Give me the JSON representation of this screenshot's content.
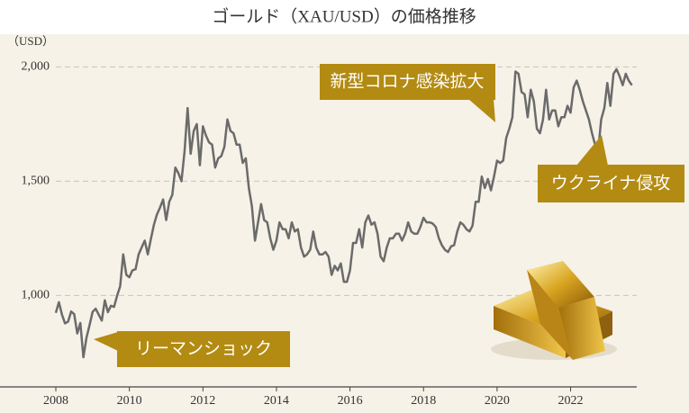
{
  "chart_data": {
    "type": "line",
    "title": "ゴールド（XAU/USD）の価格推移",
    "y_unit": "（USD）",
    "xlim": [
      2008,
      2023.8
    ],
    "xticks": [
      2008,
      2010,
      2012,
      2014,
      2016,
      2018,
      2020,
      2022
    ],
    "ylim": [
      600,
      2100
    ],
    "yticks": [
      {
        "value": 1000,
        "label": "1,000"
      },
      {
        "value": 1500,
        "label": "1,500"
      },
      {
        "value": 2000,
        "label": "2,000"
      }
    ],
    "grid": true,
    "annotations": [
      "新型コロナ感染拡大",
      "ウクライナ侵攻",
      "リーマンショック"
    ],
    "series": [
      {
        "name": "XAU/USD",
        "color": "#6b6b6b",
        "x": [
          2008,
          2008.083,
          2008.167,
          2008.25,
          2008.333,
          2008.417,
          2008.5,
          2008.583,
          2008.667,
          2008.75,
          2008.833,
          2008.917,
          2009,
          2009.083,
          2009.167,
          2009.25,
          2009.333,
          2009.417,
          2009.5,
          2009.583,
          2009.667,
          2009.75,
          2009.833,
          2009.917,
          2010,
          2010.083,
          2010.167,
          2010.25,
          2010.333,
          2010.417,
          2010.5,
          2010.583,
          2010.667,
          2010.75,
          2010.833,
          2010.917,
          2011,
          2011.083,
          2011.167,
          2011.25,
          2011.333,
          2011.417,
          2011.5,
          2011.583,
          2011.667,
          2011.75,
          2011.833,
          2011.917,
          2012,
          2012.083,
          2012.167,
          2012.25,
          2012.333,
          2012.417,
          2012.5,
          2012.583,
          2012.667,
          2012.75,
          2012.833,
          2012.917,
          2013,
          2013.083,
          2013.167,
          2013.25,
          2013.333,
          2013.417,
          2013.5,
          2013.583,
          2013.667,
          2013.75,
          2013.833,
          2013.917,
          2014,
          2014.083,
          2014.167,
          2014.25,
          2014.333,
          2014.417,
          2014.5,
          2014.583,
          2014.667,
          2014.75,
          2014.833,
          2014.917,
          2015,
          2015.083,
          2015.167,
          2015.25,
          2015.333,
          2015.417,
          2015.5,
          2015.583,
          2015.667,
          2015.75,
          2015.833,
          2015.917,
          2016,
          2016.083,
          2016.167,
          2016.25,
          2016.333,
          2016.417,
          2016.5,
          2016.583,
          2016.667,
          2016.75,
          2016.833,
          2016.917,
          2017,
          2017.083,
          2017.167,
          2017.25,
          2017.333,
          2017.417,
          2017.5,
          2017.583,
          2017.667,
          2017.75,
          2017.833,
          2017.917,
          2018,
          2018.083,
          2018.167,
          2018.25,
          2018.333,
          2018.417,
          2018.5,
          2018.583,
          2018.667,
          2018.75,
          2018.833,
          2018.917,
          2019,
          2019.083,
          2019.167,
          2019.25,
          2019.333,
          2019.417,
          2019.5,
          2019.583,
          2019.667,
          2019.75,
          2019.833,
          2019.917,
          2020,
          2020.083,
          2020.167,
          2020.25,
          2020.333,
          2020.417,
          2020.5,
          2020.583,
          2020.667,
          2020.75,
          2020.833,
          2020.917,
          2021,
          2021.083,
          2021.167,
          2021.25,
          2021.333,
          2021.417,
          2021.5,
          2021.583,
          2021.667,
          2021.75,
          2021.833,
          2021.917,
          2022,
          2022.083,
          2022.167,
          2022.25,
          2022.333,
          2022.417,
          2022.5,
          2022.583,
          2022.667,
          2022.75,
          2022.833,
          2022.917,
          2023,
          2023.083,
          2023.167,
          2023.25,
          2023.333,
          2023.417,
          2023.5,
          2023.583,
          2023.667
        ],
        "values": [
          924,
          971,
          916,
          878,
          886,
          930,
          918,
          834,
          880,
          730,
          815,
          870,
          928,
          942,
          916,
          890,
          979,
          927,
          955,
          950,
          1000,
          1040,
          1180,
          1090,
          1080,
          1110,
          1115,
          1180,
          1210,
          1240,
          1180,
          1245,
          1310,
          1355,
          1385,
          1420,
          1330,
          1410,
          1440,
          1560,
          1535,
          1500,
          1630,
          1820,
          1620,
          1720,
          1750,
          1570,
          1740,
          1700,
          1670,
          1660,
          1560,
          1600,
          1610,
          1650,
          1770,
          1720,
          1710,
          1660,
          1660,
          1580,
          1600,
          1470,
          1390,
          1240,
          1320,
          1400,
          1330,
          1320,
          1250,
          1200,
          1240,
          1320,
          1290,
          1290,
          1250,
          1320,
          1280,
          1290,
          1210,
          1170,
          1180,
          1200,
          1280,
          1210,
          1180,
          1180,
          1190,
          1170,
          1090,
          1130,
          1110,
          1140,
          1060,
          1060,
          1110,
          1230,
          1230,
          1290,
          1210,
          1320,
          1350,
          1310,
          1320,
          1270,
          1170,
          1150,
          1210,
          1250,
          1250,
          1270,
          1270,
          1240,
          1270,
          1320,
          1280,
          1270,
          1270,
          1300,
          1340,
          1320,
          1320,
          1315,
          1300,
          1250,
          1220,
          1200,
          1190,
          1215,
          1220,
          1280,
          1320,
          1310,
          1290,
          1280,
          1305,
          1410,
          1410,
          1520,
          1470,
          1510,
          1460,
          1520,
          1590,
          1580,
          1590,
          1690,
          1730,
          1780,
          1980,
          1970,
          1890,
          1880,
          1780,
          1900,
          1850,
          1730,
          1710,
          1770,
          1900,
          1770,
          1810,
          1810,
          1740,
          1780,
          1780,
          1830,
          1800,
          1910,
          1940,
          1900,
          1850,
          1810,
          1770,
          1710,
          1660,
          1630,
          1770,
          1820,
          1930,
          1830,
          1970,
          1990,
          1960,
          1920,
          1970,
          1940,
          1920
        ]
      }
    ]
  }
}
